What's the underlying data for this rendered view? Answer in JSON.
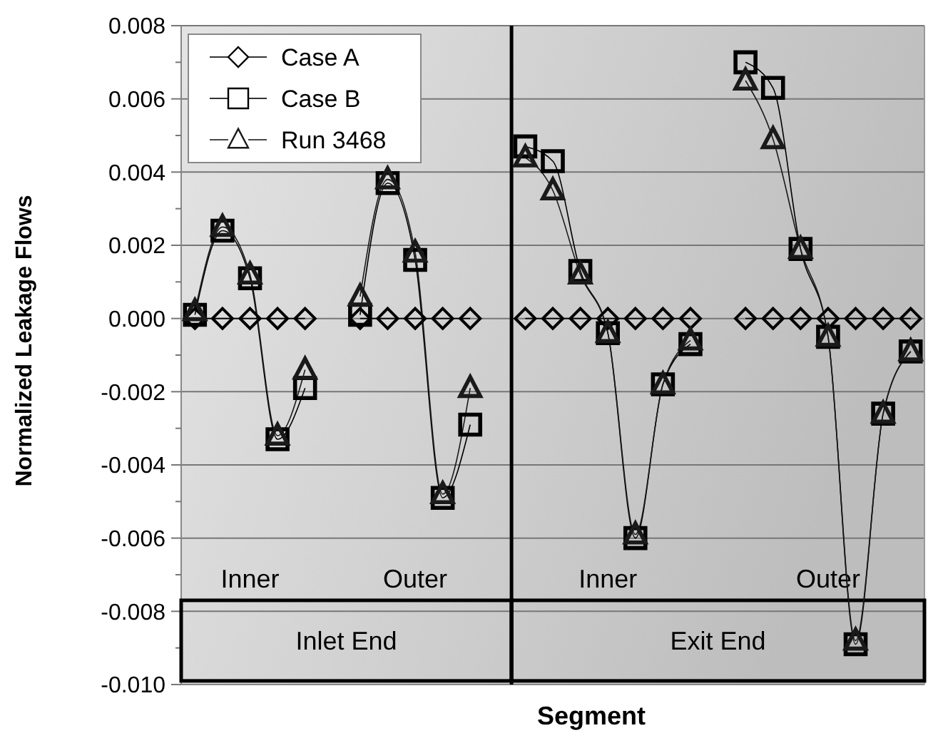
{
  "chart_data": {
    "type": "line",
    "xlabel": "Segment",
    "ylabel": "Normalized Leakage Flows",
    "categories": [
      null,
      null,
      null,
      null,
      null,
      null,
      null,
      null,
      null,
      null,
      null,
      null,
      null,
      null,
      null,
      null,
      null,
      null,
      null,
      null,
      null,
      null,
      null,
      null,
      null,
      null,
      null
    ],
    "series": [
      {
        "name": "Case A",
        "color": "#000000",
        "marker": "diamond",
        "values": [
          0,
          0,
          0,
          0,
          0,
          null,
          0,
          0,
          0,
          0,
          0,
          null,
          0,
          0,
          0,
          0,
          0,
          0,
          0,
          null,
          0,
          0,
          0,
          0,
          0,
          0,
          0
        ]
      },
      {
        "name": "Case B",
        "color": "#000000",
        "marker": "square",
        "values": [
          0.0001,
          0.0024,
          0.0011,
          -0.0033,
          -0.0019,
          null,
          0.0001,
          0.0037,
          0.0016,
          -0.0049,
          -0.0029,
          null,
          0.0047,
          0.0043,
          0.0013,
          -0.0004,
          -0.006,
          -0.0018,
          -0.0007,
          null,
          0.007,
          0.0063,
          0.0019,
          -0.0005,
          -0.0089,
          -0.0026,
          -0.0009
        ]
      },
      {
        "name": "Run 3468",
        "color": "#1a1a1a",
        "marker": "triangle",
        "values": [
          0.0002,
          0.0025,
          0.0012,
          -0.0032,
          -0.0014,
          null,
          0.0006,
          0.0038,
          0.0018,
          -0.0048,
          -0.0019,
          null,
          0.0044,
          0.0035,
          0.0012,
          -0.0004,
          -0.0059,
          -0.0018,
          -0.0006,
          null,
          0.0065,
          0.0049,
          0.0019,
          -0.0005,
          -0.0088,
          -0.0026,
          -0.0009
        ]
      }
    ],
    "ylim": [
      -0.01,
      0.008
    ],
    "yticks": [
      {
        "value": -0.01,
        "label": "-0.010"
      },
      {
        "value": -0.009,
        "label": null
      },
      {
        "value": -0.008,
        "label": "-0.008"
      },
      {
        "value": -0.007,
        "label": null
      },
      {
        "value": -0.006,
        "label": "-0.006"
      },
      {
        "value": -0.005,
        "label": null
      },
      {
        "value": -0.004,
        "label": "-0.004"
      },
      {
        "value": -0.003,
        "label": null
      },
      {
        "value": -0.002,
        "label": "-0.002"
      },
      {
        "value": -0.001,
        "label": null
      },
      {
        "value": 0,
        "label": "0.000"
      },
      {
        "value": 0.001,
        "label": null
      },
      {
        "value": 0.002,
        "label": "0.002"
      },
      {
        "value": 0.003,
        "label": null
      },
      {
        "value": 0.004,
        "label": "0.004"
      },
      {
        "value": 0.005,
        "label": null
      },
      {
        "value": 0.006,
        "label": "0.006"
      },
      {
        "value": 0.007,
        "label": null
      },
      {
        "value": 0.008,
        "label": "0.008"
      }
    ],
    "grid": "y",
    "legend": "top left",
    "line_style": "solid",
    "tick_labels": "y",
    "annotations": [
      "Inner",
      "Outer",
      "Inner",
      "Outer",
      "Inlet End",
      "Exit End"
    ]
  }
}
